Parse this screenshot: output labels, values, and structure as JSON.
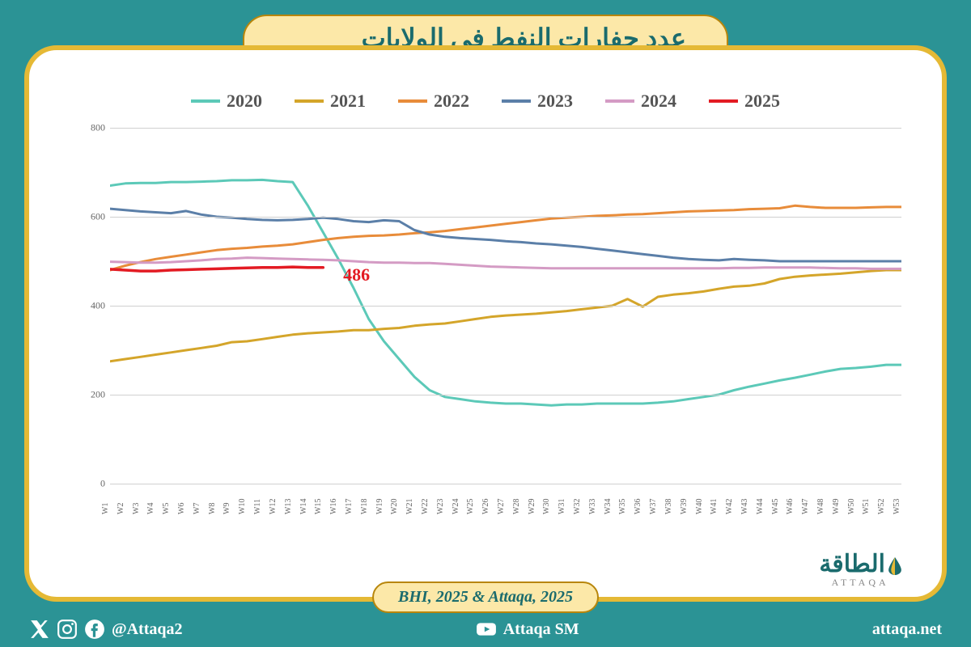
{
  "title": "عدد حفارات النفط في الولايات المتحدة",
  "source": "BHI, 2025 & Attaqa, 2025",
  "logo": {
    "ar": "الطاقة",
    "en": "ATTAQA"
  },
  "footer": {
    "left_handle": "@Attaqa2",
    "center_handle": "Attaqa SM",
    "right_url": "attaqa.net"
  },
  "chart": {
    "type": "line",
    "background_color": "#ffffff",
    "grid_color": "#d0d0d0",
    "ylim": [
      0,
      800
    ],
    "ytick_step": 200,
    "y_label_fontsize": 12,
    "x_label_fontsize": 10,
    "title_fontsize": 32,
    "legend_fontsize": 22,
    "x_labels": [
      "W1",
      "W2",
      "W3",
      "W4",
      "W5",
      "W6",
      "W7",
      "W8",
      "W9",
      "W10",
      "W11",
      "W12",
      "W13",
      "W14",
      "W15",
      "W16",
      "W17",
      "W18",
      "W19",
      "W20",
      "W21",
      "W22",
      "W23",
      "W24",
      "W25",
      "W26",
      "W27",
      "W28",
      "W29",
      "W30",
      "W31",
      "W32",
      "W33",
      "W34",
      "W35",
      "W36",
      "W37",
      "W38",
      "W39",
      "W40",
      "W41",
      "W42",
      "W43",
      "W44",
      "W45",
      "W46",
      "W47",
      "W48",
      "W49",
      "W50",
      "W51",
      "W52",
      "W53"
    ],
    "callout": {
      "value": "486",
      "x_index": 15,
      "y": 486,
      "color": "#e31b23",
      "fontsize": 22
    },
    "series": [
      {
        "name": "2020",
        "color": "#5cc9b8",
        "width": 3,
        "values": [
          670,
          675,
          676,
          676,
          678,
          678,
          679,
          680,
          682,
          682,
          683,
          680,
          678,
          625,
          565,
          505,
          440,
          370,
          320,
          280,
          240,
          210,
          195,
          190,
          185,
          182,
          180,
          180,
          178,
          176,
          178,
          178,
          180,
          180,
          180,
          180,
          182,
          185,
          190,
          195,
          200,
          210,
          218,
          225,
          232,
          238,
          245,
          252,
          258,
          260,
          263,
          267,
          267
        ]
      },
      {
        "name": "2021",
        "color": "#d4a52a",
        "width": 3,
        "values": [
          275,
          280,
          285,
          290,
          295,
          300,
          305,
          310,
          318,
          320,
          325,
          330,
          335,
          338,
          340,
          342,
          345,
          345,
          348,
          350,
          355,
          358,
          360,
          365,
          370,
          375,
          378,
          380,
          382,
          385,
          388,
          392,
          396,
          400,
          415,
          398,
          420,
          425,
          428,
          432,
          438,
          443,
          445,
          450,
          460,
          465,
          468,
          470,
          472,
          475,
          478,
          480,
          480
        ]
      },
      {
        "name": "2022",
        "color": "#e88c3a",
        "width": 3,
        "values": [
          480,
          490,
          498,
          505,
          510,
          515,
          520,
          525,
          528,
          530,
          533,
          535,
          538,
          543,
          548,
          552,
          555,
          557,
          558,
          560,
          563,
          565,
          568,
          572,
          576,
          580,
          584,
          588,
          592,
          596,
          598,
          600,
          602,
          603,
          605,
          606,
          608,
          610,
          612,
          613,
          614,
          615,
          617,
          618,
          619,
          625,
          622,
          620,
          620,
          620,
          621,
          622,
          622
        ]
      },
      {
        "name": "2023",
        "color": "#5b7fa8",
        "width": 3,
        "values": [
          618,
          615,
          612,
          610,
          608,
          613,
          605,
          600,
          598,
          595,
          593,
          592,
          593,
          595,
          598,
          595,
          590,
          588,
          592,
          590,
          570,
          560,
          555,
          552,
          550,
          548,
          545,
          543,
          540,
          538,
          535,
          532,
          528,
          524,
          520,
          516,
          512,
          508,
          505,
          503,
          502,
          505,
          503,
          502,
          500,
          500,
          500,
          500,
          500,
          500,
          500,
          500,
          500
        ]
      },
      {
        "name": "2024",
        "color": "#d49bc4",
        "width": 3,
        "values": [
          499,
          498,
          497,
          497,
          498,
          500,
          502,
          505,
          506,
          508,
          507,
          506,
          505,
          504,
          503,
          502,
          500,
          498,
          497,
          497,
          496,
          496,
          494,
          492,
          490,
          488,
          487,
          486,
          485,
          484,
          484,
          484,
          484,
          484,
          484,
          484,
          484,
          484,
          484,
          484,
          484,
          485,
          485,
          486,
          486,
          486,
          486,
          485,
          484,
          484,
          483,
          483,
          483
        ]
      },
      {
        "name": "2025",
        "color": "#e31b23",
        "width": 3.5,
        "values": [
          482,
          480,
          478,
          478,
          480,
          481,
          482,
          483,
          484,
          485,
          486,
          486,
          487,
          486,
          486
        ]
      }
    ]
  },
  "colors": {
    "page_bg": "#2b9395",
    "card_border": "#e5b935",
    "pill_bg": "#fce8a8",
    "pill_border": "#b8860b",
    "title_text": "#1a6b6d"
  }
}
